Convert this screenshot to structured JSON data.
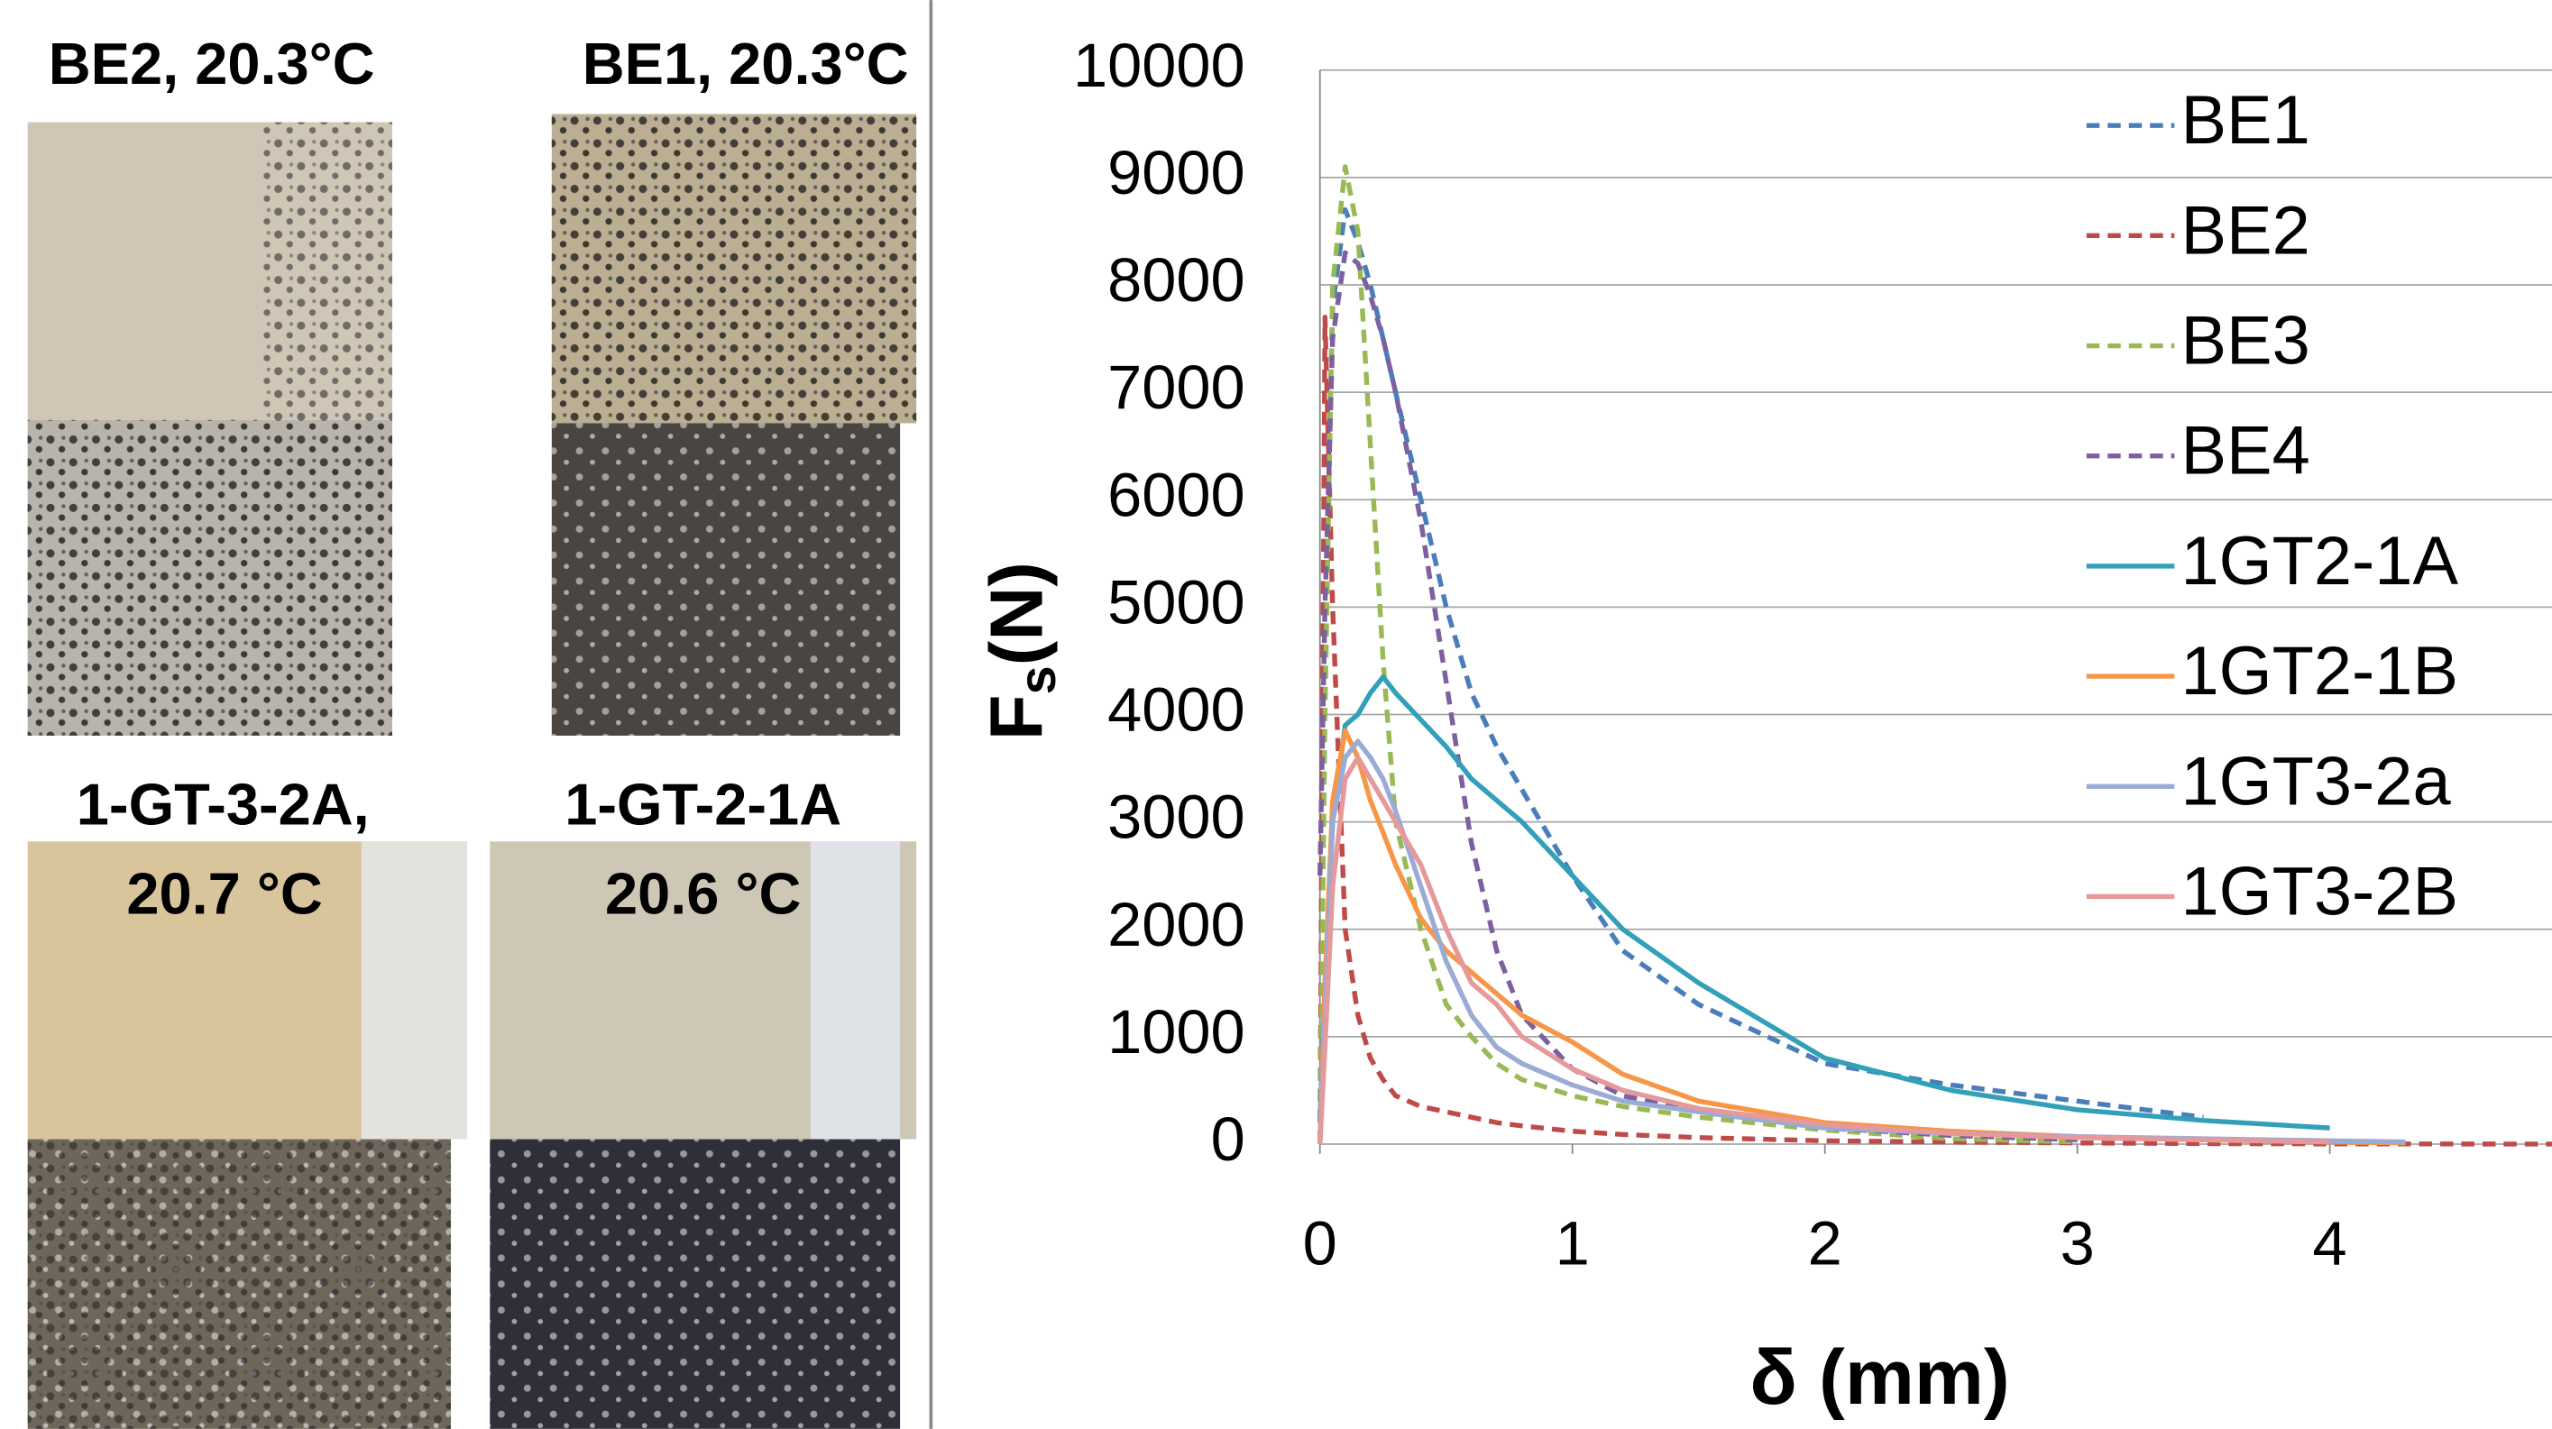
{
  "panels": [
    {
      "label": [
        "BE2, 20.3°C"
      ]
    },
    {
      "label": [
        "BE1, 20.3°C"
      ]
    },
    {
      "label": [
        "1-GT-3-2A,",
        "20.7 °C"
      ]
    },
    {
      "label": [
        "1-GT-2-1A",
        "20.6 °C"
      ]
    }
  ],
  "chart_data": {
    "type": "line",
    "ylabel": {
      "main": "F",
      "sub": "s",
      "unit": "(N)"
    },
    "xlabel": "δ (mm)",
    "x": [
      0,
      0.02,
      0.05,
      0.1,
      0.15,
      0.2,
      0.25,
      0.3,
      0.4,
      0.5,
      0.6,
      0.7,
      0.8,
      1.0,
      1.2,
      1.5,
      2.0,
      2.5,
      3.0,
      3.5,
      4.0,
      4.3,
      5.0
    ],
    "xlim": [
      0,
      4.88
    ],
    "xticks": [
      0,
      1,
      2,
      3,
      4
    ],
    "ylim": [
      0,
      10000
    ],
    "yticks": [
      0,
      1000,
      2000,
      3000,
      4000,
      5000,
      6000,
      7000,
      8000,
      9000,
      10000
    ],
    "grid": true,
    "legend": "upper right",
    "series": [
      {
        "name": "BE1",
        "color": "#4a7ebb",
        "dashed": true,
        "values": [
          0,
          5000,
          7800,
          8700,
          8400,
          8000,
          7500,
          7000,
          6000,
          5000,
          4200,
          3700,
          3300,
          2500,
          1800,
          1300,
          750,
          550,
          400,
          250,
          null,
          null,
          null
        ]
      },
      {
        "name": "BE2",
        "color": "#be4b48",
        "dashed": true,
        "values": [
          0,
          7700,
          5000,
          2000,
          1200,
          800,
          600,
          450,
          350,
          300,
          250,
          200,
          170,
          120,
          90,
          60,
          30,
          20,
          10,
          5,
          2,
          1,
          0
        ]
      },
      {
        "name": "BE3",
        "color": "#98b954",
        "dashed": true,
        "values": [
          0,
          4000,
          8000,
          9100,
          8500,
          6500,
          4500,
          3000,
          2000,
          1300,
          1000,
          750,
          600,
          450,
          350,
          250,
          130,
          50,
          20,
          null,
          null,
          null,
          null
        ]
      },
      {
        "name": "BE4",
        "color": "#7d60a0",
        "dashed": true,
        "values": [
          2500,
          5000,
          7500,
          8300,
          8200,
          7900,
          7500,
          7000,
          5800,
          4300,
          2800,
          1800,
          1200,
          700,
          450,
          300,
          150,
          80,
          40,
          null,
          null,
          null,
          null
        ]
      },
      {
        "name": "1GT2-1A",
        "color": "#31a0b8",
        "dashed": false,
        "values": [
          200,
          1500,
          3000,
          3900,
          4000,
          4200,
          4350,
          4200,
          3950,
          3700,
          3400,
          3200,
          3000,
          2500,
          2000,
          1500,
          800,
          500,
          320,
          220,
          150,
          null,
          null
        ]
      },
      {
        "name": "1GT2-1B",
        "color": "#f79646",
        "dashed": false,
        "values": [
          0,
          1500,
          3200,
          3850,
          3600,
          3200,
          2900,
          2600,
          2100,
          1800,
          1600,
          1400,
          1200,
          950,
          650,
          400,
          200,
          120,
          70,
          40,
          20,
          10,
          null
        ]
      },
      {
        "name": "1GT3-2a",
        "color": "#9aabd6",
        "dashed": false,
        "values": [
          0,
          1200,
          3000,
          3600,
          3750,
          3600,
          3400,
          3100,
          2400,
          1700,
          1200,
          900,
          750,
          550,
          400,
          300,
          150,
          100,
          70,
          50,
          30,
          20,
          null
        ]
      },
      {
        "name": "1GT3-2B",
        "color": "#e6999a",
        "dashed": false,
        "values": [
          0,
          900,
          2400,
          3400,
          3600,
          3400,
          3200,
          3000,
          2600,
          2000,
          1500,
          1300,
          1000,
          700,
          500,
          330,
          180,
          100,
          60,
          40,
          20,
          null,
          null
        ]
      }
    ]
  }
}
